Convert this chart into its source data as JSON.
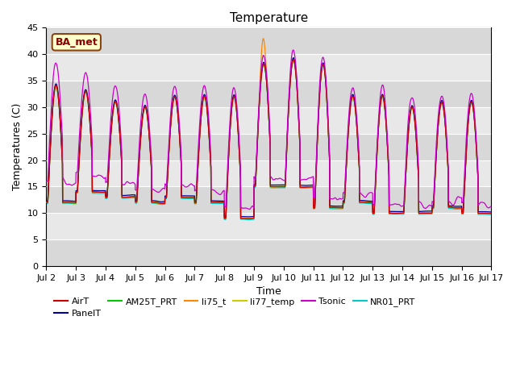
{
  "title": "Temperature",
  "xlabel": "Time",
  "ylabel": "Temperatures (C)",
  "ylim": [
    0,
    45
  ],
  "yticks": [
    0,
    5,
    10,
    15,
    20,
    25,
    30,
    35,
    40,
    45
  ],
  "annotation_text": "BA_met",
  "series_colors": {
    "AirT": "#cc0000",
    "PanelT": "#000099",
    "AM25T_PRT": "#00cc00",
    "li75_t": "#ff8800",
    "li77_temp": "#cccc00",
    "Tsonic": "#cc00cc",
    "NR01_PRT": "#00cccc"
  },
  "x_ticklabels": [
    "Jul 2",
    "Jul 3",
    "Jul 4",
    "Jul 5",
    "Jul 6",
    "Jul 7",
    "Jul 8",
    "Jul 9",
    "Jul 10",
    "Jul 11",
    "Jul 12",
    "Jul 13",
    "Jul 14",
    "Jul 15",
    "Jul 16",
    "Jul 17"
  ],
  "x_tick_positions": [
    0,
    1,
    2,
    3,
    4,
    5,
    6,
    7,
    8,
    9,
    10,
    11,
    12,
    13,
    14,
    15
  ],
  "figsize": [
    6.4,
    4.8
  ],
  "dpi": 100
}
